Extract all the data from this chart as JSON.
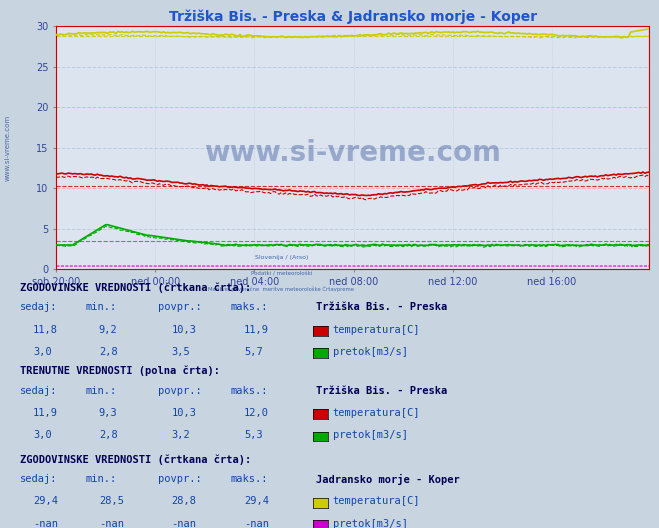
{
  "title": "Tržiška Bis. - Preska & Jadransko morje - Koper",
  "title_color": "#2255cc",
  "bg_color": "#c8d4e0",
  "plot_bg_color": "#dce4f0",
  "grid_color_major": "#ffaaaa",
  "grid_color_minor": "#bbccdd",
  "xlim": [
    0,
    287
  ],
  "ylim": [
    0,
    30
  ],
  "yticks": [
    0,
    5,
    10,
    15,
    20,
    25,
    30
  ],
  "xtick_labels": [
    "sob 20:00",
    "ned 00:00",
    "ned 04:00",
    "ned 08:00",
    "ned 12:00",
    "ned 16:00"
  ],
  "xtick_positions": [
    0,
    48,
    96,
    144,
    192,
    240
  ],
  "watermark": "www.si-vreme.com",
  "watermark_color": "#1a3a8a",
  "watermark_alpha": 0.35,
  "side_label": "www.si-vreme.com",
  "trz_temp_color": "#cc0000",
  "trz_flow_color": "#00aa00",
  "jad_temp_color": "#cccc00",
  "jad_flow_color": "#cc00cc",
  "avg_trz_temp": 10.3,
  "avg_trz_flow": 3.5,
  "avg_jad_temp": 28.8,
  "table_bg": "#c8d4e0",
  "header_color": "#000055",
  "value_color": "#1144aa",
  "label_color": "#000055",
  "fs_header": 7.5,
  "fs_value": 7.5,
  "fs_label": 7.5
}
